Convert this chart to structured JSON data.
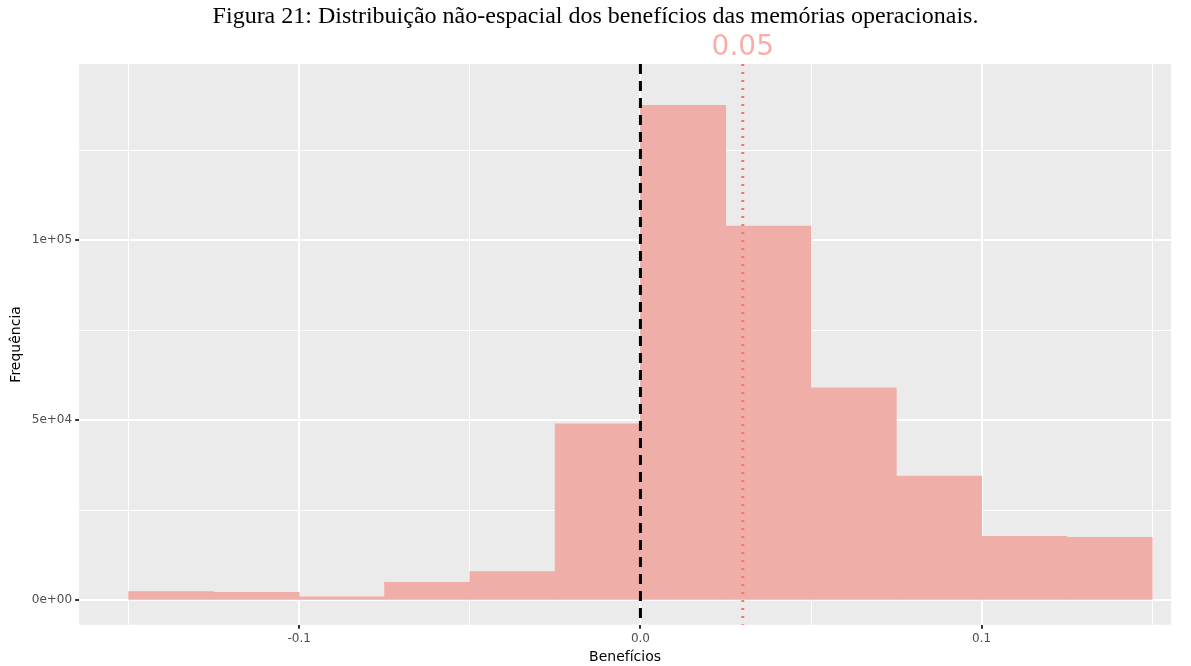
{
  "chart_data": {
    "type": "histogram",
    "title": "Figura 21: Distribuição não-espacial dos benefícios das memórias operacionais.",
    "xlabel": "Benefícios",
    "ylabel": "Frequência",
    "bins": [
      -0.15,
      -0.125,
      -0.1,
      -0.075,
      -0.05,
      -0.025,
      0,
      0.025,
      0.05,
      0.075,
      0.1,
      0.125,
      0.15
    ],
    "values": [
      2400,
      2200,
      1000,
      5000,
      8000,
      49000,
      137500,
      104000,
      59000,
      34500,
      17800,
      17500
    ],
    "color": "#f0aea8",
    "xlim": [
      -0.1645,
      0.1555
    ],
    "ylim": [
      -6800,
      149000
    ],
    "xticks": [
      {
        "value": -0.15,
        "label": null
      },
      {
        "value": -0.1,
        "label": "-0.1"
      },
      {
        "value": -0.05,
        "label": null
      },
      {
        "value": 0,
        "label": "0.0"
      },
      {
        "value": 0.05,
        "label": null
      },
      {
        "value": 0.1,
        "label": "0.1"
      },
      {
        "value": 0.15,
        "label": null
      }
    ],
    "yticks": [
      {
        "value": 0,
        "label": "0e+00"
      },
      {
        "value": 25000,
        "label": null
      },
      {
        "value": 50000,
        "label": "5e+04"
      },
      {
        "value": 75000,
        "label": null
      },
      {
        "value": 100000,
        "label": "1e+05"
      },
      {
        "value": 125000,
        "label": null
      }
    ],
    "grid": true,
    "ref_lines": [
      {
        "axis": "x",
        "value": 0,
        "color": "#000000",
        "line_style": "dashed"
      },
      {
        "axis": "x",
        "value": 0.03,
        "color": "#f8766d",
        "line_style": "dotted"
      }
    ],
    "annotations": [
      "0.05"
    ]
  }
}
